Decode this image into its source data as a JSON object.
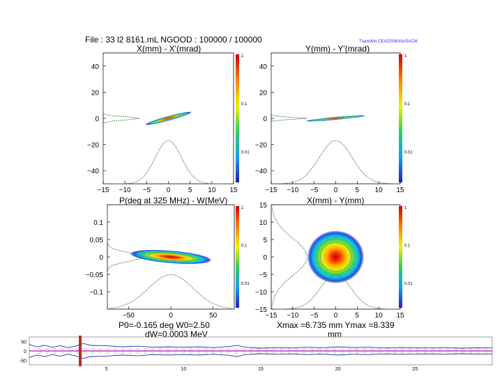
{
  "header": {
    "file_line": "File : 33 l2 8161.mL    NGOOD : 100000 / 100000",
    "tracewin_tag": "TraceWin    CEA/DSM/Irfu/SACM"
  },
  "panels": [
    {
      "title": "X(mm) - X'(mrad)"
    },
    {
      "title": "Y(mm) - Y'(mrad)"
    },
    {
      "title": "P(deg at 325 MHz) - W(MeV)"
    },
    {
      "title": "X(mm) - Y(mm)"
    }
  ],
  "footers": {
    "phase_line1": "P0=-0.165 deg  W0=2.50",
    "phase_line2": "dW=0.0003 MeV",
    "xy_line1": "Xmax =6.735 mm  Ymax =8.339",
    "xy_line2": "mm"
  },
  "colors": {
    "envelope": "#2233aa",
    "reference": "#cc33cc",
    "marker": "#b03020",
    "profile": "#3a7a3a"
  },
  "chart_data": [
    {
      "type": "scatter",
      "title": "X(mm) - X'(mrad)",
      "x_ticks": [
        -15,
        -10,
        -5,
        0,
        5,
        10,
        15
      ],
      "y_ticks": [
        -40,
        -20,
        0,
        20,
        40
      ],
      "xlim": [
        -15,
        15
      ],
      "ylim": [
        -50,
        50
      ],
      "density_center": [
        0,
        0
      ],
      "density_halfwidths": [
        5.5,
        5.5
      ],
      "density_slope": 0.9,
      "colorbar_ticks": [
        "1",
        "0.1",
        "0.01"
      ],
      "colorbar_scale": "log"
    },
    {
      "type": "scatter",
      "title": "Y(mm) - Y'(mrad)",
      "x_ticks": [
        -15,
        -10,
        -5,
        0,
        5,
        10,
        15
      ],
      "y_ticks": [
        -40,
        -20,
        0,
        20,
        40
      ],
      "xlim": [
        -15,
        15
      ],
      "ylim": [
        -50,
        50
      ],
      "density_center": [
        0,
        0
      ],
      "density_halfwidths": [
        7,
        4
      ],
      "density_slope": 0.3,
      "colorbar_ticks": [
        "1",
        "0.1",
        "0.01"
      ],
      "colorbar_scale": "log"
    },
    {
      "type": "scatter",
      "title": "P(deg at 325 MHz) - W(MeV)",
      "x_ticks": [
        -50,
        0,
        50
      ],
      "y_ticks": [
        "-0.1",
        "-0.05",
        "0",
        "0.05",
        "0.1"
      ],
      "xlim": [
        -75,
        75
      ],
      "ylim": [
        -0.15,
        0.15
      ],
      "density_center": [
        0,
        0
      ],
      "density_halfwidths": [
        48,
        0.02
      ],
      "density_slope": -0.0002,
      "colorbar_ticks": [
        "1",
        "0.1",
        "0.01"
      ],
      "colorbar_scale": "log"
    },
    {
      "type": "scatter",
      "title": "X(mm) - Y(mm)",
      "x_ticks": [
        -15,
        -10,
        -5,
        0,
        5,
        10,
        15
      ],
      "y_ticks": [
        -15,
        -10,
        -5,
        0,
        5,
        10,
        15
      ],
      "xlim": [
        -15,
        15
      ],
      "ylim": [
        -15,
        15
      ],
      "density_center": [
        0,
        0
      ],
      "density_halfwidths": [
        6.5,
        7.5
      ],
      "density_slope": 0,
      "colorbar_ticks": [
        "1",
        "0.1",
        "0.01"
      ],
      "colorbar_scale": "log"
    },
    {
      "type": "line",
      "title": "",
      "y_ticks": [
        -50,
        0,
        50
      ],
      "x_ticks": [
        5,
        10,
        15,
        20,
        25
      ],
      "xlim": [
        0,
        30
      ],
      "ylim": [
        -75,
        75
      ],
      "envelope_x": [
        0,
        0.5,
        1,
        1.5,
        2,
        2.5,
        3,
        3.5,
        4,
        5,
        6,
        7,
        8,
        9,
        10,
        11,
        12,
        13,
        13.5,
        14,
        15,
        16,
        17,
        18,
        19,
        20,
        21,
        22,
        23,
        24,
        25,
        26,
        27,
        28,
        29,
        30
      ],
      "envelope_upper": [
        35,
        22,
        30,
        20,
        28,
        18,
        26,
        40,
        30,
        28,
        22,
        26,
        20,
        22,
        20,
        22,
        18,
        24,
        30,
        20,
        15,
        18,
        16,
        20,
        17,
        22,
        18,
        20,
        16,
        18,
        17,
        16,
        18,
        15,
        17,
        16
      ],
      "envelope_lower": [
        -35,
        -22,
        -30,
        -20,
        -28,
        -18,
        -26,
        -40,
        -30,
        -28,
        -22,
        -26,
        -20,
        -22,
        -20,
        -22,
        -18,
        -24,
        -30,
        -20,
        -15,
        -18,
        -16,
        -20,
        -17,
        -22,
        -18,
        -20,
        -16,
        -18,
        -17,
        -16,
        -18,
        -15,
        -17,
        -16
      ],
      "marker_position": 3.3
    }
  ]
}
